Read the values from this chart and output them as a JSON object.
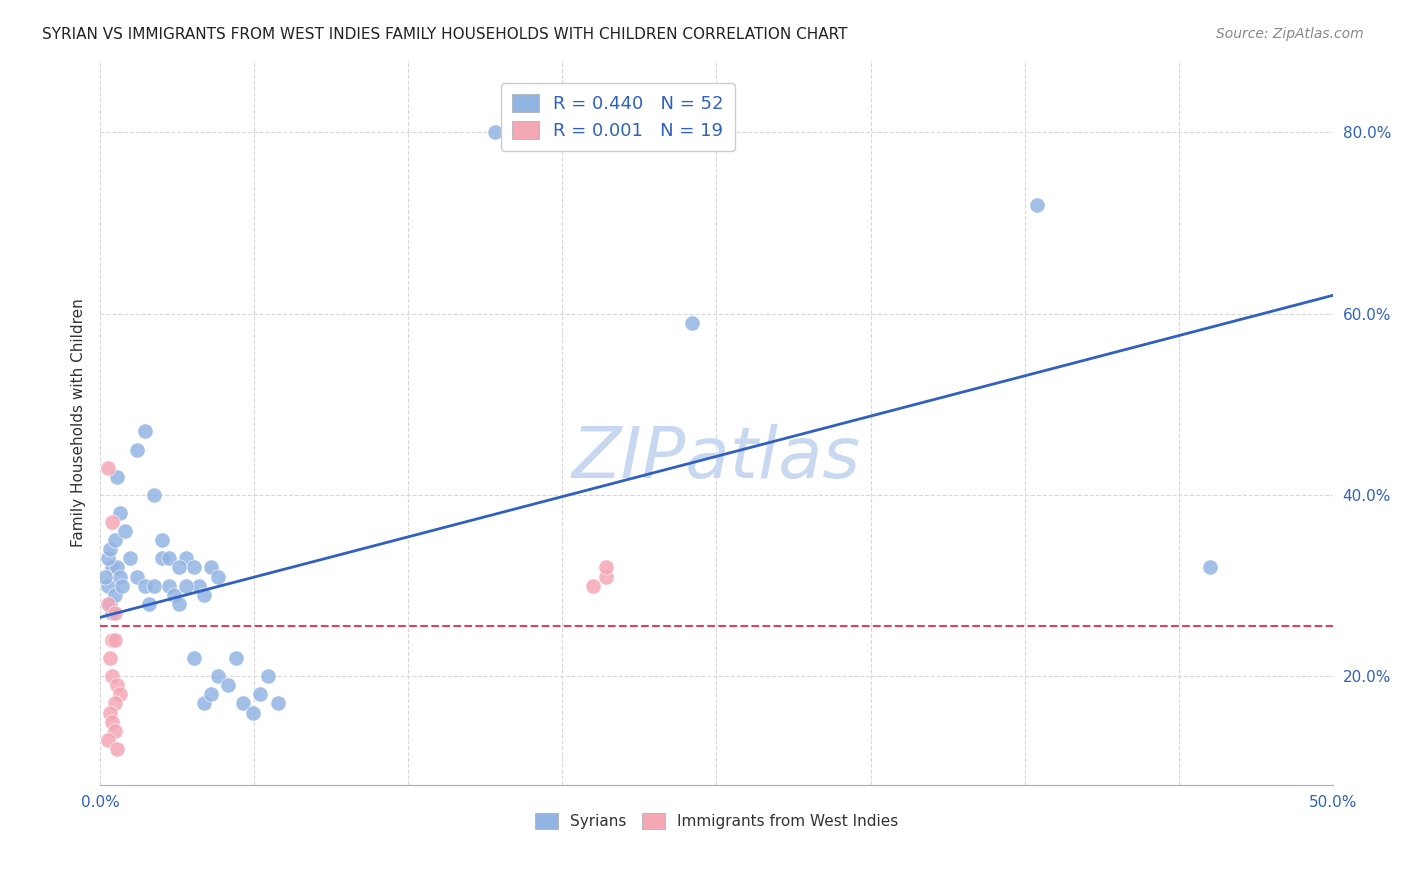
{
  "title": "SYRIAN VS IMMIGRANTS FROM WEST INDIES FAMILY HOUSEHOLDS WITH CHILDREN CORRELATION CHART",
  "source": "Source: ZipAtlas.com",
  "xlabel_ticks": [
    "0.0%",
    "50.0%"
  ],
  "ylabel_ticks": [
    "20.0%",
    "40.0%",
    "60.0%",
    "80.0%"
  ],
  "xlabel": "",
  "ylabel": "Family Households with Children",
  "blue_label": "Syrians",
  "pink_label": "Immigrants from West Indies",
  "blue_R": "0.440",
  "blue_N": "52",
  "pink_R": "0.001",
  "pink_N": "19",
  "blue_color": "#92b4e3",
  "pink_color": "#f4a7b5",
  "blue_line_color": "#3060c0",
  "pink_line_color": "#e04060",
  "watermark": "ZIPatlas",
  "watermark_color": "#c8d8f0",
  "background_color": "#ffffff",
  "grid_color": "#d8d8d8",
  "xlim": [
    0.0,
    0.5
  ],
  "ylim": [
    0.08,
    0.88
  ],
  "blue_scatter_x": [
    0.005,
    0.007,
    0.003,
    0.008,
    0.004,
    0.006,
    0.002,
    0.009,
    0.003,
    0.005,
    0.004,
    0.006,
    0.007,
    0.008,
    0.01,
    0.012,
    0.015,
    0.018,
    0.02,
    0.022,
    0.025,
    0.028,
    0.03,
    0.032,
    0.035,
    0.038,
    0.04,
    0.042,
    0.045,
    0.048,
    0.015,
    0.018,
    0.022,
    0.025,
    0.028,
    0.032,
    0.035,
    0.038,
    0.042,
    0.045,
    0.048,
    0.052,
    0.055,
    0.058,
    0.062,
    0.065,
    0.068,
    0.072,
    0.16,
    0.45,
    0.24,
    0.38
  ],
  "blue_scatter_y": [
    0.32,
    0.32,
    0.3,
    0.31,
    0.28,
    0.29,
    0.31,
    0.3,
    0.33,
    0.27,
    0.34,
    0.35,
    0.42,
    0.38,
    0.36,
    0.33,
    0.31,
    0.3,
    0.28,
    0.3,
    0.33,
    0.3,
    0.29,
    0.28,
    0.33,
    0.32,
    0.3,
    0.29,
    0.32,
    0.31,
    0.45,
    0.47,
    0.4,
    0.35,
    0.33,
    0.32,
    0.3,
    0.22,
    0.17,
    0.18,
    0.2,
    0.19,
    0.22,
    0.17,
    0.16,
    0.18,
    0.2,
    0.17,
    0.8,
    0.32,
    0.59,
    0.72
  ],
  "pink_scatter_x": [
    0.003,
    0.005,
    0.003,
    0.006,
    0.004,
    0.005,
    0.007,
    0.008,
    0.006,
    0.004,
    0.005,
    0.006,
    0.003,
    0.007,
    0.005,
    0.006,
    0.2,
    0.205,
    0.205
  ],
  "pink_scatter_y": [
    0.43,
    0.37,
    0.28,
    0.27,
    0.22,
    0.2,
    0.19,
    0.18,
    0.17,
    0.16,
    0.15,
    0.14,
    0.13,
    0.12,
    0.24,
    0.24,
    0.3,
    0.31,
    0.32
  ],
  "blue_line_x0": 0.0,
  "blue_line_x1": 0.5,
  "blue_line_y0": 0.265,
  "blue_line_y1": 0.62,
  "pink_line_x0": 0.0,
  "pink_line_x1": 0.5,
  "pink_line_y0": 0.255,
  "pink_line_y1": 0.255
}
